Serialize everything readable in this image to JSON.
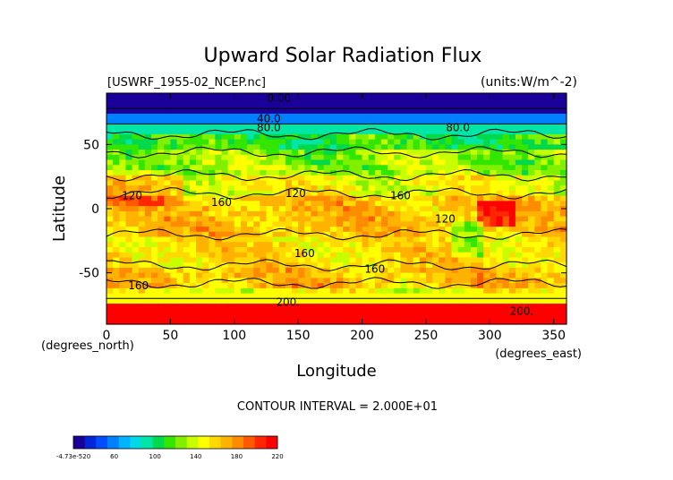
{
  "chart_data": {
    "type": "heatmap",
    "title": "Upward Solar Radiation Flux",
    "file_label": "[USWRF_1955-02_NCEP.nc]",
    "units_label": "(units:W/m^-2)",
    "xlabel": "Longitude",
    "ylabel": "Latitude",
    "x_unit_note": "(degrees_east)",
    "y_unit_note": "(degrees_north)",
    "xlim": [
      0,
      360
    ],
    "ylim": [
      -90,
      90
    ],
    "x_ticks": [
      "0",
      "50",
      "100",
      "150",
      "200",
      "250",
      "300",
      "350"
    ],
    "y_ticks": [
      "50",
      "0",
      "-50"
    ],
    "contour_interval": "CONTOUR INTERVAL = 2.000E+01",
    "contour_labels": [
      "0.00",
      "40.0",
      "80.0",
      "80.0",
      "120",
      "120",
      "120",
      "160",
      "160",
      "160",
      "160",
      "160",
      "200.",
      "200."
    ],
    "colorbar": {
      "tick_labels": [
        "-4.73e-520",
        "60",
        "100",
        "140",
        "180",
        "220"
      ],
      "colors": [
        "#1a0099",
        "#0026d9",
        "#004cff",
        "#0080ff",
        "#00b3ff",
        "#00d9e6",
        "#00e6a6",
        "#00d94c",
        "#33e600",
        "#80f000",
        "#c8ff00",
        "#ffff00",
        "#ffd900",
        "#ffb300",
        "#ff8c00",
        "#ff5a00",
        "#ff2600",
        "#ff0000"
      ]
    },
    "zonal_bands": [
      {
        "lat_range": [
          90,
          75
        ],
        "value": 0
      },
      {
        "lat_range": [
          75,
          65
        ],
        "value": 40
      },
      {
        "lat_range": [
          65,
          58
        ],
        "value": 80
      },
      {
        "lat_range": [
          58,
          45
        ],
        "value": 100
      },
      {
        "lat_range": [
          45,
          25
        ],
        "value": 120
      },
      {
        "lat_range": [
          25,
          10
        ],
        "value": 140
      },
      {
        "lat_range": [
          10,
          -20
        ],
        "value": 160
      },
      {
        "lat_range": [
          -20,
          -45
        ],
        "value": 150
      },
      {
        "lat_range": [
          -45,
          -60
        ],
        "value": 160
      },
      {
        "lat_range": [
          -60,
          -72
        ],
        "value": 140
      },
      {
        "lat_range": [
          -72,
          -90
        ],
        "value": 210
      }
    ]
  }
}
